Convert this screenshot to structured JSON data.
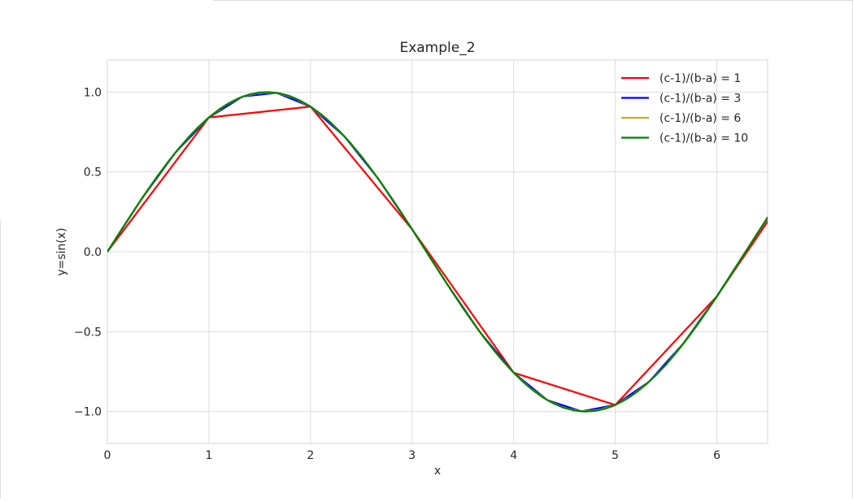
{
  "chart_data": {
    "type": "line",
    "title": "Example_2",
    "xlabel": "x",
    "ylabel": "y=sin(x)",
    "xlim": [
      0,
      6.5
    ],
    "ylim": [
      -1.2,
      1.2
    ],
    "xticks": [
      0,
      1,
      2,
      3,
      4,
      5,
      6
    ],
    "yticks": [
      1.0,
      0.5,
      0.0,
      -0.5,
      -1.0
    ],
    "ytick_labels": [
      "1.0",
      "0.5",
      "0.0",
      "−0.5",
      "−1.0"
    ],
    "grid": true,
    "legend_position": "top-right",
    "series": [
      {
        "name": "(c-1)/(b-a) = 1",
        "color": "#ff0000",
        "x": [
          0,
          1,
          2,
          3,
          4,
          5,
          6,
          7
        ],
        "y": [
          0,
          0.841,
          0.909,
          0.141,
          -0.757,
          -0.959,
          -0.279,
          0.657
        ]
      },
      {
        "name": "(c-1)/(b-a) = 3",
        "color": "#0000ff",
        "x": [
          0,
          0.333,
          0.667,
          1,
          1.333,
          1.667,
          2,
          2.333,
          2.667,
          3,
          3.333,
          3.667,
          4,
          4.333,
          4.667,
          5,
          5.333,
          5.667,
          6,
          6.333,
          6.667
        ],
        "y": [
          0,
          0.327,
          0.619,
          0.841,
          0.972,
          0.995,
          0.909,
          0.723,
          0.457,
          0.141,
          -0.19,
          -0.502,
          -0.757,
          -0.929,
          -0.999,
          -0.959,
          -0.813,
          -0.576,
          -0.279,
          0.05,
          0.374
        ]
      },
      {
        "name": "(c-1)/(b-a) = 6",
        "color": "#c8b400",
        "x": [
          0,
          0.167,
          0.333,
          0.5,
          0.667,
          0.833,
          1,
          1.167,
          1.333,
          1.5,
          1.667,
          1.833,
          2,
          2.167,
          2.333,
          2.5,
          2.667,
          2.833,
          3,
          3.167,
          3.333,
          3.5,
          3.667,
          3.833,
          4,
          4.167,
          4.333,
          4.5,
          4.667,
          4.833,
          5,
          5.167,
          5.333,
          5.5,
          5.667,
          5.833,
          6,
          6.167,
          6.333,
          6.5
        ],
        "y": [
          0,
          0.166,
          0.327,
          0.479,
          0.619,
          0.74,
          0.841,
          0.919,
          0.972,
          0.997,
          0.995,
          0.966,
          0.909,
          0.827,
          0.723,
          0.598,
          0.457,
          0.303,
          0.141,
          -0.025,
          -0.19,
          -0.351,
          -0.502,
          -0.639,
          -0.757,
          -0.854,
          -0.929,
          -0.978,
          -0.999,
          -0.992,
          -0.959,
          -0.898,
          -0.813,
          -0.706,
          -0.576,
          -0.433,
          -0.279,
          -0.117,
          0.05,
          0.215
        ]
      },
      {
        "name": "(c-1)/(b-a) = 10",
        "color": "#008000",
        "x": [
          0,
          0.1,
          0.2,
          0.3,
          0.4,
          0.5,
          0.6,
          0.7,
          0.8,
          0.9,
          1,
          1.1,
          1.2,
          1.3,
          1.4,
          1.5,
          1.6,
          1.7,
          1.8,
          1.9,
          2,
          2.1,
          2.2,
          2.3,
          2.4,
          2.5,
          2.6,
          2.7,
          2.8,
          2.9,
          3,
          3.1,
          3.2,
          3.3,
          3.4,
          3.5,
          3.6,
          3.7,
          3.8,
          3.9,
          4,
          4.1,
          4.2,
          4.3,
          4.4,
          4.5,
          4.6,
          4.7,
          4.8,
          4.9,
          5,
          5.1,
          5.2,
          5.3,
          5.4,
          5.5,
          5.6,
          5.7,
          5.8,
          5.9,
          6,
          6.1,
          6.2,
          6.3,
          6.4,
          6.5
        ],
        "y": [
          0,
          0.0998,
          0.1987,
          0.2955,
          0.3894,
          0.4794,
          0.5646,
          0.6442,
          0.7174,
          0.7833,
          0.8415,
          0.8912,
          0.932,
          0.9636,
          0.9854,
          0.9975,
          0.9996,
          0.9917,
          0.9738,
          0.9463,
          0.9093,
          0.8632,
          0.8085,
          0.7457,
          0.6755,
          0.5985,
          0.5155,
          0.4274,
          0.335,
          0.2392,
          0.1411,
          0.0416,
          -0.0584,
          -0.1577,
          -0.2555,
          -0.3508,
          -0.4425,
          -0.5298,
          -0.6119,
          -0.6878,
          -0.7568,
          -0.8183,
          -0.8716,
          -0.9162,
          -0.9516,
          -0.9775,
          -0.9937,
          -0.9999,
          -0.9962,
          -0.9825,
          -0.9589,
          -0.9258,
          -0.8835,
          -0.8323,
          -0.7728,
          -0.7055,
          -0.6313,
          -0.5507,
          -0.4646,
          -0.3739,
          -0.2794,
          -0.1822,
          -0.0831,
          0.0168,
          0.1165,
          0.2151
        ]
      }
    ]
  }
}
